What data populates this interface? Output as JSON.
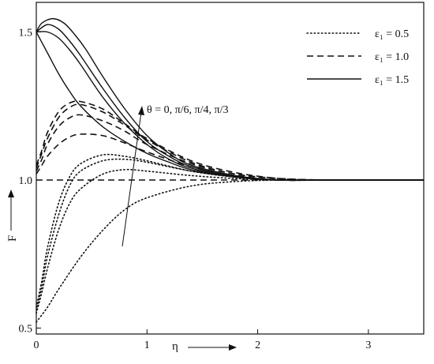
{
  "chart_data": {
    "type": "line",
    "title": "",
    "xlabel": "η",
    "ylabel": "F",
    "xlim": [
      0,
      3.5
    ],
    "ylim": [
      0.48,
      1.6
    ],
    "grid": false,
    "legend_position": "top-right",
    "x_ticks": [
      {
        "value": 0,
        "label": "0"
      },
      {
        "value": 1,
        "label": "1"
      },
      {
        "value": 2,
        "label": "2"
      },
      {
        "value": 3,
        "label": "3"
      }
    ],
    "y_ticks": [
      {
        "value": 0.5,
        "label": "0.5"
      },
      {
        "value": 1.0,
        "label": "1.0"
      },
      {
        "value": 1.5,
        "label": "1.5"
      }
    ],
    "reference_line": {
      "y": 1.0,
      "style": "dashed"
    },
    "legend": [
      {
        "label": "ε₁ = 0.5",
        "style": "dotted"
      },
      {
        "label": "ε₁ = 1.0",
        "style": "dashed"
      },
      {
        "label": "ε₁ = 1.5",
        "style": "solid"
      }
    ],
    "annotation": {
      "text": "θ = 0, π/6, π/4, π/3",
      "arrow_direction": "increasing θ"
    },
    "series": [
      {
        "style": "dotted",
        "x": [
          0,
          0.1,
          0.2,
          0.4,
          0.6,
          0.8,
          1.0,
          1.4,
          1.8,
          2.2,
          2.6,
          3.0,
          3.5
        ],
        "y": [
          0.52,
          0.57,
          0.63,
          0.74,
          0.83,
          0.9,
          0.94,
          0.98,
          0.995,
          1.0,
          1.0,
          1.0,
          1.0
        ]
      },
      {
        "style": "dotted",
        "x": [
          0,
          0.05,
          0.1,
          0.2,
          0.3,
          0.4,
          0.6,
          0.8,
          1.0,
          1.4,
          1.8,
          2.2,
          2.6,
          3.0,
          3.5
        ],
        "y": [
          0.55,
          0.62,
          0.7,
          0.83,
          0.92,
          0.97,
          1.02,
          1.035,
          1.03,
          1.015,
          1.005,
          1.0,
          1.0,
          1.0,
          1.0
        ]
      },
      {
        "style": "dotted",
        "x": [
          0,
          0.05,
          0.1,
          0.2,
          0.3,
          0.4,
          0.6,
          0.8,
          1.0,
          1.4,
          1.8,
          2.2,
          2.6,
          3.0,
          3.5
        ],
        "y": [
          0.56,
          0.64,
          0.74,
          0.88,
          0.98,
          1.03,
          1.065,
          1.07,
          1.06,
          1.03,
          1.01,
          1.0,
          1.0,
          1.0,
          1.0
        ]
      },
      {
        "style": "dotted",
        "x": [
          0,
          0.05,
          0.1,
          0.2,
          0.3,
          0.4,
          0.6,
          0.8,
          1.0,
          1.4,
          1.8,
          2.2,
          2.6,
          3.0,
          3.5
        ],
        "y": [
          0.57,
          0.66,
          0.77,
          0.92,
          1.01,
          1.055,
          1.085,
          1.08,
          1.065,
          1.03,
          1.01,
          1.0,
          1.0,
          1.0,
          1.0
        ]
      },
      {
        "style": "dashed",
        "x": [
          0,
          0.05,
          0.1,
          0.2,
          0.3,
          0.4,
          0.6,
          0.8,
          1.0,
          1.4,
          1.8,
          2.2,
          2.6,
          3.0,
          3.5
        ],
        "y": [
          1.02,
          1.05,
          1.08,
          1.12,
          1.145,
          1.155,
          1.15,
          1.125,
          1.095,
          1.045,
          1.015,
          1.0,
          1.0,
          1.0,
          1.0
        ]
      },
      {
        "style": "dashed",
        "x": [
          0,
          0.05,
          0.1,
          0.2,
          0.3,
          0.4,
          0.6,
          0.8,
          1.0,
          1.4,
          1.8,
          2.2,
          2.6,
          3.0,
          3.5
        ],
        "y": [
          1.03,
          1.07,
          1.12,
          1.18,
          1.21,
          1.22,
          1.2,
          1.165,
          1.12,
          1.055,
          1.02,
          1.005,
          1.0,
          1.0,
          1.0
        ]
      },
      {
        "style": "dashed",
        "x": [
          0,
          0.05,
          0.1,
          0.2,
          0.3,
          0.4,
          0.6,
          0.8,
          1.0,
          1.4,
          1.8,
          2.2,
          2.6,
          3.0,
          3.5
        ],
        "y": [
          1.04,
          1.09,
          1.14,
          1.21,
          1.245,
          1.255,
          1.23,
          1.185,
          1.135,
          1.06,
          1.02,
          1.005,
          1.0,
          1.0,
          1.0
        ]
      },
      {
        "style": "dashed",
        "x": [
          0,
          0.05,
          0.1,
          0.2,
          0.3,
          0.4,
          0.6,
          0.8,
          1.0,
          1.4,
          1.8,
          2.2,
          2.6,
          3.0,
          3.5
        ],
        "y": [
          1.05,
          1.1,
          1.16,
          1.23,
          1.26,
          1.265,
          1.24,
          1.19,
          1.14,
          1.065,
          1.025,
          1.005,
          1.0,
          1.0,
          1.0
        ]
      },
      {
        "style": "solid",
        "x": [
          0,
          0.1,
          0.2,
          0.3,
          0.4,
          0.6,
          0.8,
          1.0,
          1.2,
          1.4,
          1.8,
          2.2,
          2.6,
          3.0,
          3.5
        ],
        "y": [
          1.5,
          1.43,
          1.36,
          1.3,
          1.25,
          1.18,
          1.13,
          1.09,
          1.06,
          1.035,
          1.01,
          1.0,
          1.0,
          1.0,
          1.0
        ]
      },
      {
        "style": "solid",
        "x": [
          0,
          0.1,
          0.2,
          0.3,
          0.4,
          0.6,
          0.8,
          1.0,
          1.2,
          1.4,
          1.8,
          2.2,
          2.6,
          3.0,
          3.5
        ],
        "y": [
          1.5,
          1.5,
          1.48,
          1.44,
          1.39,
          1.28,
          1.19,
          1.12,
          1.07,
          1.04,
          1.01,
          1.0,
          1.0,
          1.0,
          1.0
        ]
      },
      {
        "style": "solid",
        "x": [
          0,
          0.1,
          0.2,
          0.3,
          0.4,
          0.6,
          0.8,
          1.0,
          1.2,
          1.4,
          1.8,
          2.2,
          2.6,
          3.0,
          3.5
        ],
        "y": [
          1.5,
          1.525,
          1.51,
          1.47,
          1.42,
          1.31,
          1.21,
          1.13,
          1.08,
          1.045,
          1.012,
          1.0,
          1.0,
          1.0,
          1.0
        ]
      },
      {
        "style": "solid",
        "x": [
          0,
          0.05,
          0.15,
          0.25,
          0.35,
          0.45,
          0.6,
          0.8,
          1.0,
          1.2,
          1.4,
          1.8,
          2.2,
          2.6,
          3.0,
          3.5
        ],
        "y": [
          1.5,
          1.53,
          1.545,
          1.53,
          1.49,
          1.44,
          1.35,
          1.24,
          1.15,
          1.09,
          1.05,
          1.015,
          1.0,
          1.0,
          1.0,
          1.0
        ]
      }
    ]
  }
}
